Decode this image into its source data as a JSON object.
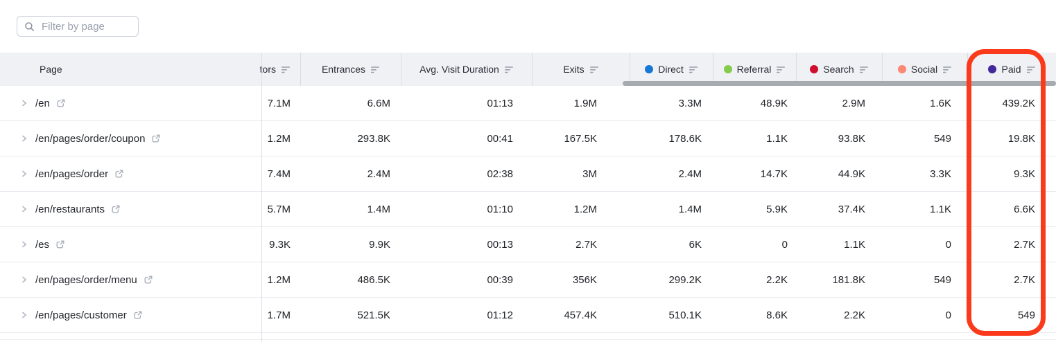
{
  "toolbar": {
    "filter_placeholder": "Filter by page"
  },
  "table": {
    "columns": {
      "page": {
        "label": "Page"
      },
      "visitors": {
        "label": "tors"
      },
      "entrances": {
        "label": "Entrances"
      },
      "avg_visit_duration": {
        "label": "Avg. Visit Duration"
      },
      "exits": {
        "label": "Exits"
      },
      "direct": {
        "label": "Direct",
        "dot_color": "#1677d4"
      },
      "referral": {
        "label": "Referral",
        "dot_color": "#85cc4c"
      },
      "search": {
        "label": "Search",
        "dot_color": "#ce0f2d"
      },
      "social": {
        "label": "Social",
        "dot_color": "#fc8775"
      },
      "paid": {
        "label": "Paid",
        "dot_color": "#42299b"
      }
    },
    "rows": [
      {
        "page": "/en",
        "visitors": "7.1M",
        "entrances": "6.6M",
        "avg_visit_duration": "01:13",
        "exits": "1.9M",
        "direct": "3.3M",
        "referral": "48.9K",
        "search": "2.9M",
        "social": "1.6K",
        "paid": "439.2K"
      },
      {
        "page": "/en/pages/order/coupon",
        "visitors": "1.2M",
        "entrances": "293.8K",
        "avg_visit_duration": "00:41",
        "exits": "167.5K",
        "direct": "178.6K",
        "referral": "1.1K",
        "search": "93.8K",
        "social": "549",
        "paid": "19.8K"
      },
      {
        "page": "/en/pages/order",
        "visitors": "7.4M",
        "entrances": "2.4M",
        "avg_visit_duration": "02:38",
        "exits": "3M",
        "direct": "2.4M",
        "referral": "14.7K",
        "search": "44.9K",
        "social": "3.3K",
        "paid": "9.3K"
      },
      {
        "page": "/en/restaurants",
        "visitors": "5.7M",
        "entrances": "1.4M",
        "avg_visit_duration": "01:10",
        "exits": "1.2M",
        "direct": "1.4M",
        "referral": "5.9K",
        "search": "37.4K",
        "social": "1.1K",
        "paid": "6.6K"
      },
      {
        "page": "/es",
        "visitors": "9.3K",
        "entrances": "9.9K",
        "avg_visit_duration": "00:13",
        "exits": "2.7K",
        "direct": "6K",
        "referral": "0",
        "search": "1.1K",
        "social": "0",
        "paid": "2.7K"
      },
      {
        "page": "/en/pages/order/menu",
        "visitors": "1.2M",
        "entrances": "486.5K",
        "avg_visit_duration": "00:39",
        "exits": "356K",
        "direct": "299.2K",
        "referral": "2.2K",
        "search": "181.8K",
        "social": "549",
        "paid": "2.7K"
      },
      {
        "page": "/en/pages/customer",
        "visitors": "1.7M",
        "entrances": "521.5K",
        "avg_visit_duration": "01:12",
        "exits": "457.4K",
        "direct": "510.1K",
        "referral": "8.6K",
        "search": "2.2K",
        "social": "0",
        "paid": "549"
      }
    ]
  },
  "annotation": {
    "highlighted_column": "Paid",
    "color": "#fb3a1c"
  }
}
